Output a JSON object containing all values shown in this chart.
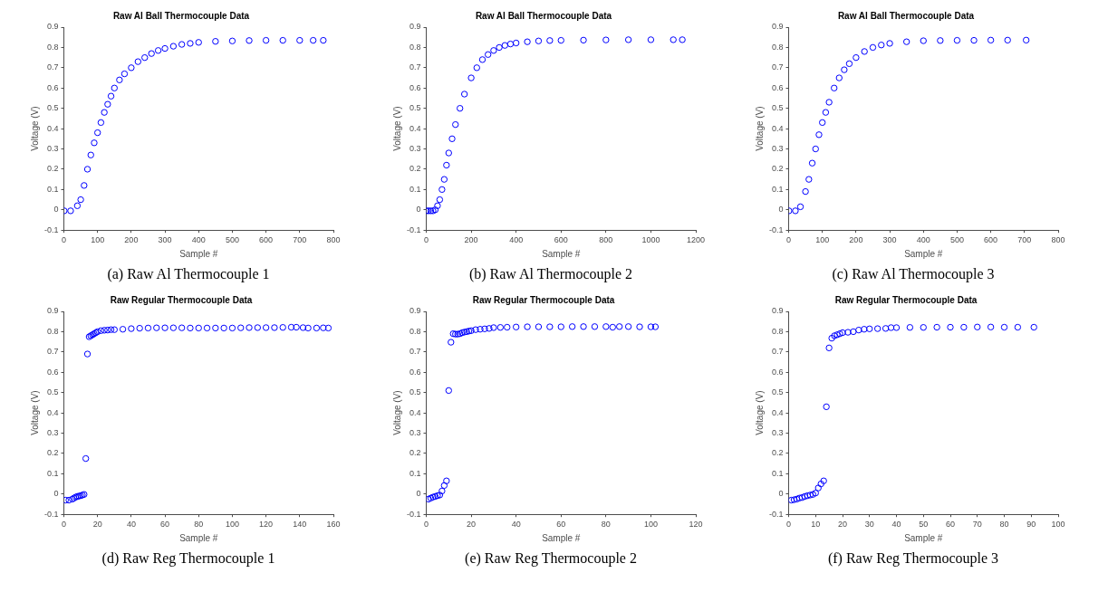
{
  "chart_data": [
    {
      "type": "scatter",
      "title": "Raw Al Ball Thermocouple Data",
      "xlabel": "Sample #",
      "ylabel": "Voltage (V)",
      "annotations": [
        "(a) Raw Al Thermocouple 1"
      ],
      "color": "#0000ff",
      "marker": "circle",
      "x": [
        1,
        20,
        40,
        50,
        60,
        70,
        80,
        90,
        100,
        110,
        120,
        130,
        140,
        150,
        165,
        180,
        200,
        220,
        240,
        260,
        280,
        300,
        325,
        350,
        375,
        400,
        450,
        500,
        550,
        600,
        650,
        700,
        740,
        770
      ],
      "values": [
        -0.005,
        -0.005,
        0.02,
        0.05,
        0.12,
        0.2,
        0.27,
        0.33,
        0.38,
        0.43,
        0.48,
        0.52,
        0.56,
        0.6,
        0.64,
        0.67,
        0.7,
        0.73,
        0.75,
        0.77,
        0.785,
        0.795,
        0.806,
        0.815,
        0.82,
        0.825,
        0.83,
        0.832,
        0.834,
        0.835,
        0.835,
        0.835,
        0.835,
        0.835
      ],
      "xlim": [
        0,
        800
      ],
      "xticks": [
        0,
        100,
        200,
        300,
        400,
        500,
        600,
        700,
        800
      ],
      "ylim": [
        -0.1,
        0.9
      ],
      "yticks": [
        -0.1,
        0,
        0.1,
        0.2,
        0.3,
        0.4,
        0.5,
        0.6,
        0.7,
        0.8,
        0.9
      ]
    },
    {
      "type": "scatter",
      "title": "Raw Al Ball Thermocouple Data",
      "xlabel": "Sample #",
      "ylabel": "Voltage (V)",
      "annotations": [
        "(b) Raw Al Thermocouple 2"
      ],
      "color": "#0000ff",
      "marker": "circle",
      "x": [
        1,
        10,
        20,
        30,
        40,
        50,
        60,
        70,
        80,
        90,
        100,
        115,
        130,
        150,
        170,
        200,
        225,
        250,
        275,
        300,
        325,
        350,
        375,
        400,
        450,
        500,
        550,
        600,
        700,
        800,
        900,
        1000,
        1100,
        1140
      ],
      "values": [
        -0.005,
        -0.005,
        -0.005,
        -0.005,
        0.0,
        0.02,
        0.05,
        0.1,
        0.15,
        0.22,
        0.28,
        0.35,
        0.42,
        0.5,
        0.57,
        0.65,
        0.7,
        0.74,
        0.765,
        0.785,
        0.8,
        0.81,
        0.817,
        0.822,
        0.828,
        0.832,
        0.834,
        0.835,
        0.836,
        0.837,
        0.838,
        0.838,
        0.838,
        0.838
      ],
      "xlim": [
        0,
        1200
      ],
      "xticks": [
        0,
        200,
        400,
        600,
        800,
        1000,
        1200
      ],
      "ylim": [
        -0.1,
        0.9
      ],
      "yticks": [
        -0.1,
        0,
        0.1,
        0.2,
        0.3,
        0.4,
        0.5,
        0.6,
        0.7,
        0.8,
        0.9
      ]
    },
    {
      "type": "scatter",
      "title": "Raw Al Ball Thermocouple Data",
      "xlabel": "Sample #",
      "ylabel": "Voltage (V)",
      "annotations": [
        "(c) Raw Al Thermocouple 3"
      ],
      "color": "#0000ff",
      "marker": "circle",
      "x": [
        1,
        20,
        35,
        50,
        60,
        70,
        80,
        90,
        100,
        110,
        120,
        135,
        150,
        165,
        180,
        200,
        225,
        250,
        275,
        300,
        350,
        400,
        450,
        500,
        550,
        600,
        650,
        705
      ],
      "values": [
        -0.005,
        -0.005,
        0.015,
        0.09,
        0.15,
        0.23,
        0.3,
        0.37,
        0.43,
        0.48,
        0.53,
        0.6,
        0.65,
        0.69,
        0.72,
        0.75,
        0.78,
        0.8,
        0.812,
        0.82,
        0.828,
        0.833,
        0.834,
        0.835,
        0.835,
        0.836,
        0.836,
        0.836
      ],
      "xlim": [
        0,
        800
      ],
      "xticks": [
        0,
        100,
        200,
        300,
        400,
        500,
        600,
        700,
        800
      ],
      "ylim": [
        -0.1,
        0.9
      ],
      "yticks": [
        -0.1,
        0,
        0.1,
        0.2,
        0.3,
        0.4,
        0.5,
        0.6,
        0.7,
        0.8,
        0.9
      ]
    },
    {
      "type": "scatter",
      "title": "Raw Regular Thermocouple Data",
      "xlabel": "Sample #",
      "ylabel": "Voltage (V)",
      "annotations": [
        "(d) Raw Reg Thermocouple 1"
      ],
      "color": "#0000ff",
      "marker": "circle",
      "x": [
        1,
        3,
        5,
        6,
        7,
        8,
        9,
        10,
        11,
        12,
        13,
        14,
        15,
        16,
        17,
        18,
        19,
        20,
        22,
        24,
        26,
        28,
        30,
        35,
        40,
        45,
        50,
        55,
        60,
        65,
        70,
        75,
        80,
        85,
        90,
        95,
        100,
        105,
        110,
        115,
        120,
        125,
        130,
        135,
        138,
        142,
        145,
        150,
        154,
        157
      ],
      "values": [
        -0.03,
        -0.03,
        -0.025,
        -0.02,
        -0.015,
        -0.012,
        -0.01,
        -0.008,
        -0.005,
        -0.002,
        0.175,
        0.69,
        0.775,
        0.78,
        0.785,
        0.79,
        0.795,
        0.8,
        0.805,
        0.807,
        0.808,
        0.81,
        0.81,
        0.812,
        0.815,
        0.817,
        0.818,
        0.819,
        0.819,
        0.819,
        0.819,
        0.818,
        0.818,
        0.818,
        0.818,
        0.818,
        0.818,
        0.819,
        0.82,
        0.82,
        0.82,
        0.82,
        0.821,
        0.822,
        0.822,
        0.82,
        0.818,
        0.818,
        0.819,
        0.818
      ],
      "xlim": [
        0,
        160
      ],
      "xticks": [
        0,
        20,
        40,
        60,
        80,
        100,
        120,
        140,
        160
      ],
      "ylim": [
        -0.1,
        0.9
      ],
      "yticks": [
        -0.1,
        0,
        0.1,
        0.2,
        0.3,
        0.4,
        0.5,
        0.6,
        0.7,
        0.8,
        0.9
      ]
    },
    {
      "type": "scatter",
      "title": "Raw Regular Thermocouple Data",
      "xlabel": "Sample #",
      "ylabel": "Voltage (V)",
      "annotations": [
        "(e) Raw Reg Thermocouple 2"
      ],
      "color": "#0000ff",
      "marker": "circle",
      "x": [
        1,
        2,
        3,
        4,
        5,
        6,
        7,
        8,
        9,
        10,
        11,
        12,
        13,
        14,
        15,
        16,
        17,
        18,
        19,
        20,
        22,
        24,
        26,
        28,
        30,
        33,
        36,
        40,
        45,
        50,
        55,
        60,
        65,
        70,
        75,
        80,
        83,
        86,
        90,
        95,
        100,
        102
      ],
      "values": [
        -0.025,
        -0.02,
        -0.015,
        -0.012,
        -0.008,
        -0.005,
        0.015,
        0.042,
        0.065,
        0.51,
        0.748,
        0.79,
        0.788,
        0.788,
        0.79,
        0.795,
        0.798,
        0.8,
        0.803,
        0.805,
        0.81,
        0.812,
        0.814,
        0.816,
        0.82,
        0.821,
        0.822,
        0.823,
        0.824,
        0.824,
        0.824,
        0.824,
        0.825,
        0.825,
        0.825,
        0.825,
        0.822,
        0.825,
        0.825,
        0.824,
        0.824,
        0.824
      ],
      "xlim": [
        0,
        120
      ],
      "xticks": [
        0,
        20,
        40,
        60,
        80,
        100,
        120
      ],
      "ylim": [
        -0.1,
        0.9
      ],
      "yticks": [
        -0.1,
        0,
        0.1,
        0.2,
        0.3,
        0.4,
        0.5,
        0.6,
        0.7,
        0.8,
        0.9
      ]
    },
    {
      "type": "scatter",
      "title": "Raw Regular Thermocouple Data",
      "xlabel": "Sample #",
      "ylabel": "Voltage (V)",
      "annotations": [
        "(f) Raw Reg Thermocouple 3"
      ],
      "color": "#0000ff",
      "marker": "circle",
      "x": [
        1,
        2,
        3,
        4,
        5,
        6,
        7,
        8,
        9,
        10,
        11,
        12,
        13,
        14,
        15,
        16,
        17,
        18,
        19,
        20,
        22,
        24,
        26,
        28,
        30,
        33,
        36,
        38,
        40,
        45,
        50,
        55,
        60,
        65,
        70,
        75,
        80,
        85,
        91
      ],
      "values": [
        -0.03,
        -0.028,
        -0.025,
        -0.02,
        -0.017,
        -0.012,
        -0.008,
        -0.005,
        -0.002,
        0.005,
        0.03,
        0.05,
        0.065,
        0.43,
        0.72,
        0.768,
        0.78,
        0.785,
        0.79,
        0.795,
        0.797,
        0.8,
        0.808,
        0.812,
        0.814,
        0.815,
        0.816,
        0.82,
        0.82,
        0.821,
        0.821,
        0.822,
        0.822,
        0.822,
        0.823,
        0.823,
        0.822,
        0.822,
        0.822
      ],
      "xlim": [
        0,
        100
      ],
      "xticks": [
        0,
        10,
        20,
        30,
        40,
        50,
        60,
        70,
        80,
        90,
        100
      ],
      "ylim": [
        -0.1,
        0.9
      ],
      "yticks": [
        -0.1,
        0,
        0.1,
        0.2,
        0.3,
        0.4,
        0.5,
        0.6,
        0.7,
        0.8,
        0.9
      ]
    }
  ]
}
